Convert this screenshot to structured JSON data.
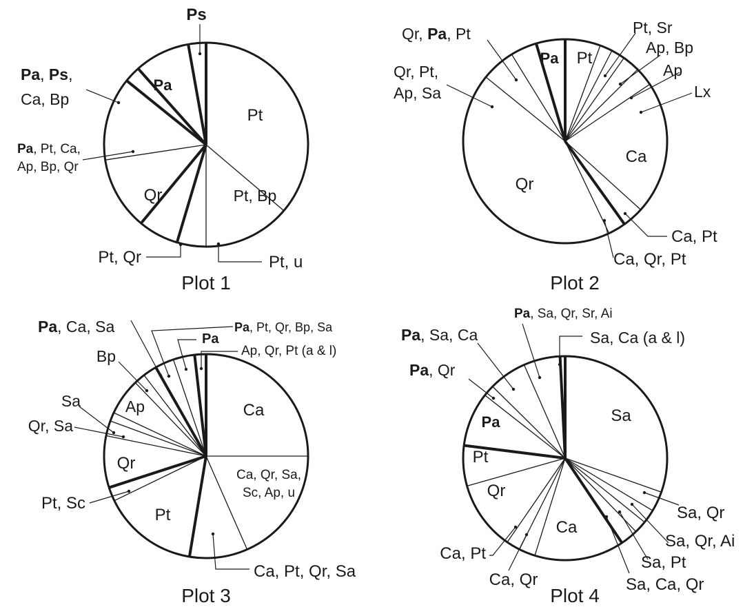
{
  "chart_data": [
    {
      "type": "pie",
      "title": "Plot 1",
      "slices": [
        {
          "segments": [
            {
              "t": "Pt"
            }
          ],
          "value": 36.2
        },
        {
          "segments": [
            {
              "t": "Pt, Bp"
            }
          ],
          "value": 13.8
        },
        {
          "segments": [
            {
              "t": "Pt, u"
            }
          ],
          "value": 4.6
        },
        {
          "segments": [
            {
              "t": "Pt, Qr"
            }
          ],
          "value": 6.4
        },
        {
          "segments": [
            {
              "t": "Qr"
            }
          ],
          "value": 11.6
        },
        {
          "segments": [
            {
              "t": "Pa",
              "b": true
            },
            {
              "t": ", Pt, Ca, Ap, Bp, Qr"
            }
          ],
          "value": 13.2
        },
        {
          "segments": [
            {
              "t": "Pa",
              "b": true
            },
            {
              "t": ", "
            },
            {
              "t": "Ps",
              "b": true
            },
            {
              "t": ", Ca, Bp"
            }
          ],
          "value": 2.6
        },
        {
          "segments": [
            {
              "t": "Pa",
              "b": true
            }
          ],
          "value": 8.8
        },
        {
          "segments": [
            {
              "t": "Ps",
              "b": true
            }
          ],
          "value": 2.8
        }
      ]
    },
    {
      "type": "pie",
      "title": "Plot 2",
      "slices": [
        {
          "segments": [
            {
              "t": "Pt"
            }
          ],
          "value": 5.6
        },
        {
          "segments": [
            {
              "t": "Pt, Sr"
            }
          ],
          "value": 2.0
        },
        {
          "segments": [
            {
              "t": "Ap, Bp"
            }
          ],
          "value": 2.2
        },
        {
          "segments": [
            {
              "t": "Ap"
            }
          ],
          "value": 2.8
        },
        {
          "segments": [
            {
              "t": "Lx"
            }
          ],
          "value": 3.0
        },
        {
          "segments": [
            {
              "t": "Ca"
            }
          ],
          "value": 21.2
        },
        {
          "segments": [
            {
              "t": "Ca, Pt"
            }
          ],
          "value": 3.4
        },
        {
          "segments": [
            {
              "t": "Ca, Qr, Pt"
            }
          ],
          "value": 2.8
        },
        {
          "segments": [
            {
              "t": "Qr"
            }
          ],
          "value": 43.0
        },
        {
          "segments": [
            {
              "t": "Qr, Pt, Ap, Sa"
            }
          ],
          "value": 5.4
        },
        {
          "segments": [
            {
              "t": "Qr, "
            },
            {
              "t": "Pa",
              "b": true
            },
            {
              "t": ", Pt"
            }
          ],
          "value": 4.2
        },
        {
          "segments": [
            {
              "t": "Pa",
              "b": true
            }
          ],
          "value": 4.6
        }
      ]
    },
    {
      "type": "pie",
      "title": "Plot 3",
      "slices": [
        {
          "segments": [
            {
              "t": "Ca"
            }
          ],
          "value": 25.0
        },
        {
          "segments": [
            {
              "t": "Ca, Qr, Sa, Sc, Ap, u"
            }
          ],
          "value": 18.4
        },
        {
          "segments": [
            {
              "t": "Ca, Pt, Qr, Sa"
            }
          ],
          "value": 9.2
        },
        {
          "segments": [
            {
              "t": "Pt"
            }
          ],
          "value": 15.2
        },
        {
          "segments": [
            {
              "t": "Pt, Sc"
            }
          ],
          "value": 2.2
        },
        {
          "segments": [
            {
              "t": "Qr"
            }
          ],
          "value": 8.2
        },
        {
          "segments": [
            {
              "t": "Qr, Sa"
            }
          ],
          "value": 2.4
        },
        {
          "segments": [
            {
              "t": "Sa"
            }
          ],
          "value": 1.4
        },
        {
          "segments": [
            {
              "t": "Ap"
            }
          ],
          "value": 5.8
        },
        {
          "segments": [
            {
              "t": "Bp"
            }
          ],
          "value": 1.8
        },
        {
          "segments": [
            {
              "t": "Pa",
              "b": true
            },
            {
              "t": ", Ca, Sa"
            }
          ],
          "value": 2.2
        },
        {
          "segments": [
            {
              "t": "Pa",
              "b": true
            },
            {
              "t": ", Pt, Qr, Bp, Sa"
            }
          ],
          "value": 3.0
        },
        {
          "segments": [
            {
              "t": "Pa",
              "b": true
            }
          ],
          "value": 3.4
        },
        {
          "segments": [
            {
              "t": "Ap, Qr, Pt (a & l)"
            }
          ],
          "value": 1.8
        }
      ]
    },
    {
      "type": "pie",
      "title": "Plot 4",
      "slices": [
        {
          "segments": [
            {
              "t": "Sa"
            }
          ],
          "value": 30.4
        },
        {
          "segments": [
            {
              "t": "Sa, Qr"
            }
          ],
          "value": 3.2
        },
        {
          "segments": [
            {
              "t": "Sa, Qr, Ai"
            }
          ],
          "value": 2.2
        },
        {
          "segments": [
            {
              "t": "Sa, Pt"
            }
          ],
          "value": 2.0
        },
        {
          "segments": [
            {
              "t": "Sa, Ca, Qr"
            }
          ],
          "value": 2.8
        },
        {
          "segments": [
            {
              "t": "Ca"
            }
          ],
          "value": 14.2
        },
        {
          "segments": [
            {
              "t": "Ca, Qr"
            }
          ],
          "value": 2.6
        },
        {
          "segments": [
            {
              "t": "Ca, Pt"
            }
          ],
          "value": 2.2
        },
        {
          "segments": [
            {
              "t": "Qr"
            }
          ],
          "value": 11.0
        },
        {
          "segments": [
            {
              "t": "Pt"
            }
          ],
          "value": 6.4
        },
        {
          "segments": [
            {
              "t": "Pa",
              "b": true
            }
          ],
          "value": 8.6
        },
        {
          "segments": [
            {
              "t": "Pa",
              "b": true
            },
            {
              "t": ", Qr"
            }
          ],
          "value": 1.8
        },
        {
          "segments": [
            {
              "t": "Pa",
              "b": true
            },
            {
              "t": ", Sa, Ca"
            }
          ],
          "value": 6.0
        },
        {
          "segments": [
            {
              "t": "Pa",
              "b": true
            },
            {
              "t": ", Sa, Qr, Sr, Ai"
            }
          ],
          "value": 5.8
        },
        {
          "segments": [
            {
              "t": "Sa, Ca (a & l)"
            }
          ],
          "value": 0.8
        }
      ]
    }
  ]
}
